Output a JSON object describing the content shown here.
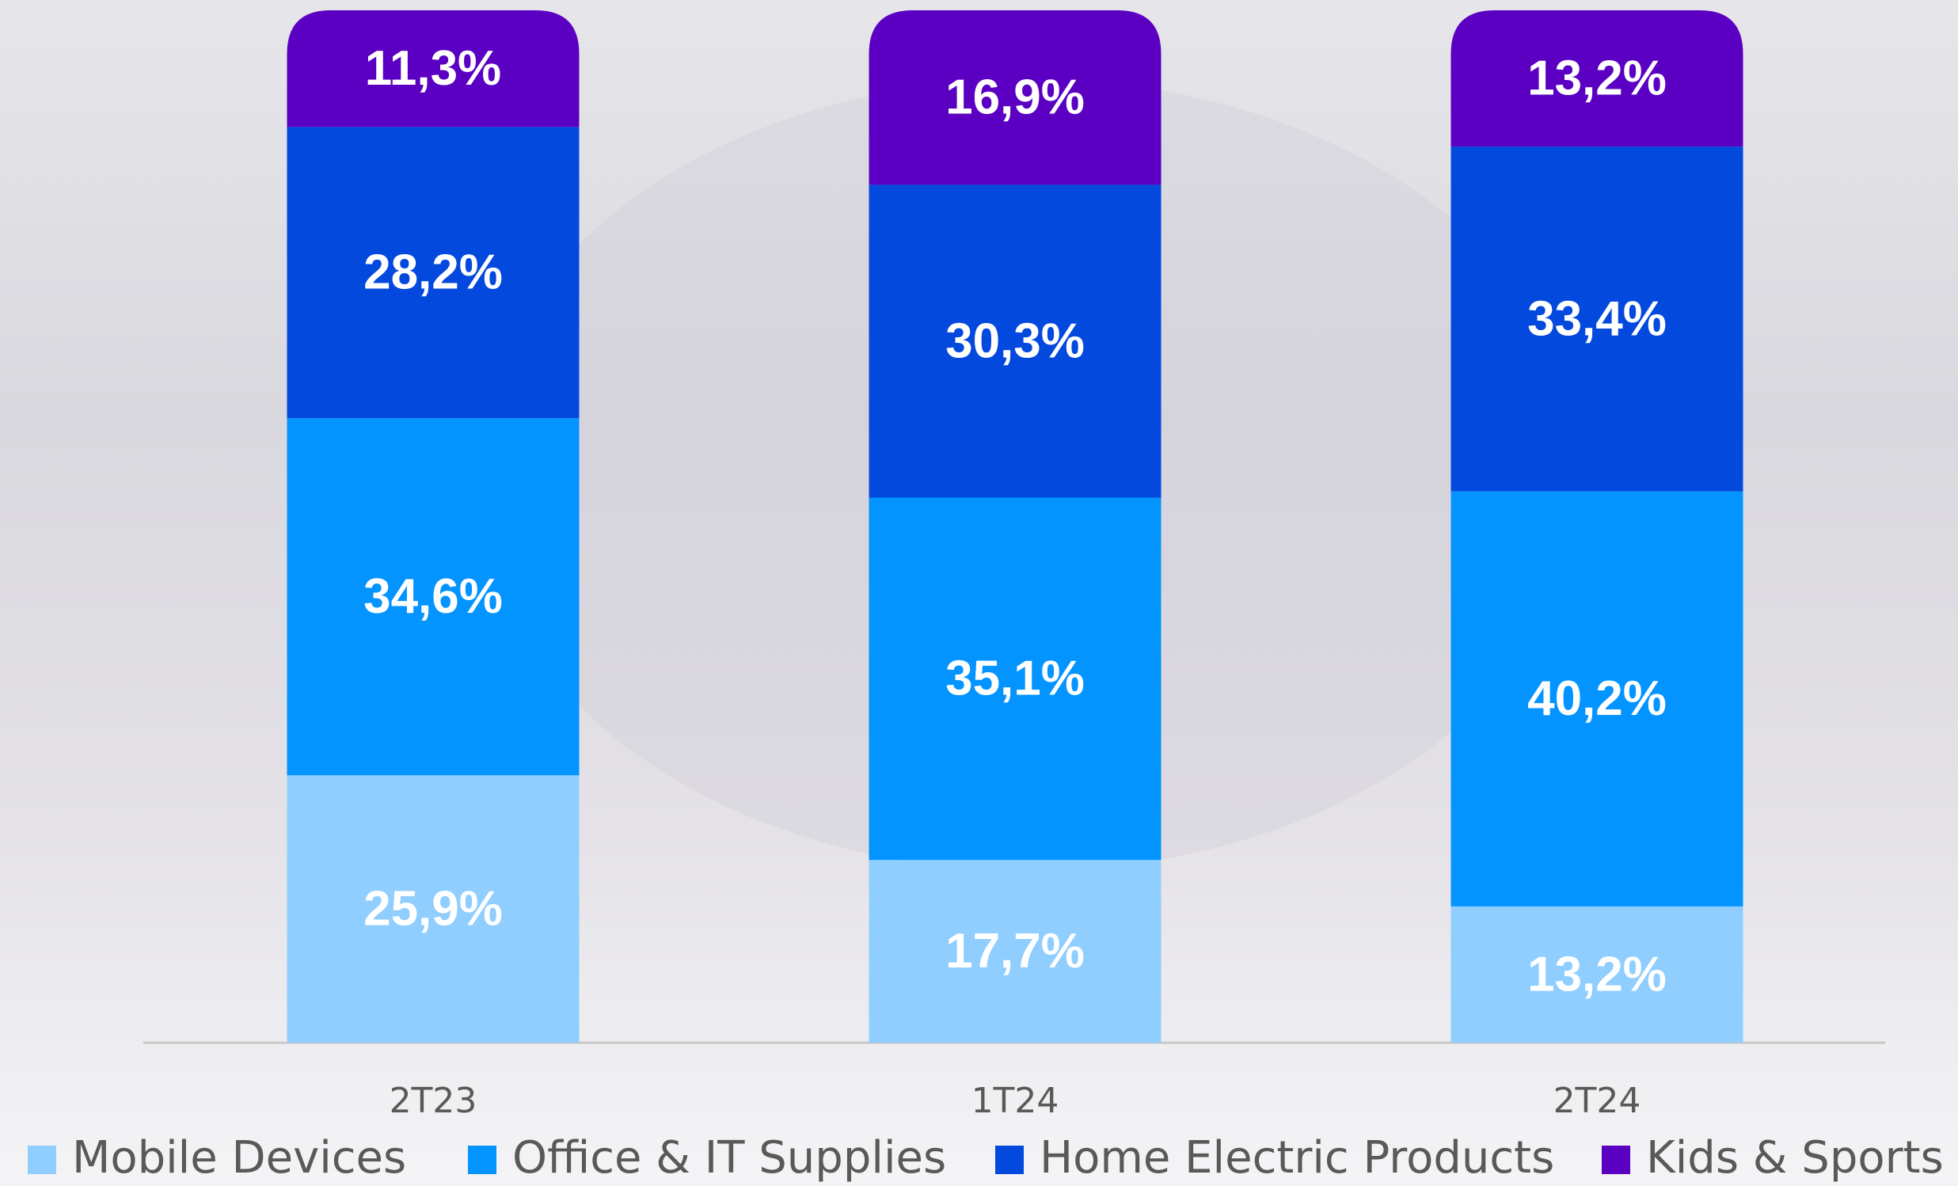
{
  "chart_data": {
    "type": "stacked_bar",
    "categories": [
      "2T23",
      "1T24",
      "2T24"
    ],
    "ylim": [
      0,
      100
    ],
    "series": [
      {
        "name": "Mobile Devices",
        "color": "#8fceff",
        "values": [
          25.9,
          17.7,
          13.2
        ],
        "value_labels": [
          "25,9%",
          "17,7%",
          "13,2%"
        ]
      },
      {
        "name": "Office & IT Supplies",
        "color": "#0394ff",
        "values": [
          34.6,
          35.1,
          40.2
        ],
        "value_labels": [
          "34,6%",
          "35,1%",
          "40,2%"
        ]
      },
      {
        "name": "Home Electric Products",
        "color": "#0349dd",
        "values": [
          28.2,
          30.3,
          33.4
        ],
        "value_labels": [
          "28,2%",
          "30,3%",
          "33,4%"
        ]
      },
      {
        "name": "Kids & Sports",
        "color": "#5b00c2",
        "values": [
          11.3,
          16.9,
          13.2
        ],
        "value_labels": [
          "11,3%",
          "16,9%",
          "13,2%"
        ]
      }
    ]
  }
}
